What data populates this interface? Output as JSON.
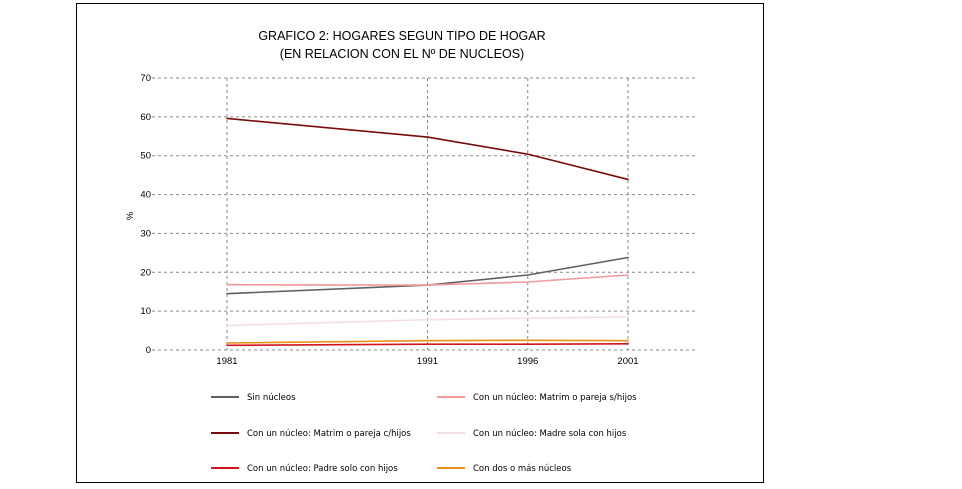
{
  "chart_data": {
    "type": "line",
    "title": "GRAFICO 2: HOGARES SEGUN TIPO DE HOGAR",
    "subtitle": "(EN RELACION CON EL Nº DE NUCLEOS)",
    "ylabel": "%",
    "xlabel": "",
    "x": [
      "1981",
      "1991",
      "1996",
      "2001"
    ],
    "ylim": [
      0,
      70
    ],
    "yticks": [
      "0",
      "10",
      "20",
      "30",
      "40",
      "50",
      "60",
      "70"
    ],
    "grid": true,
    "legend_position": "bottom",
    "series": [
      {
        "name": "Sin núcleos",
        "values": [
          14.5,
          16.7,
          19.3,
          23.8
        ],
        "color": "#606060"
      },
      {
        "name": "Con un núcleo: Matrim o pareja s/hijos",
        "values": [
          16.8,
          16.7,
          17.5,
          19.3
        ],
        "color": "#f19a9a"
      },
      {
        "name": "Con un núcleo: Matrim o pareja c/hijos",
        "values": [
          59.6,
          54.8,
          50.4,
          43.9
        ],
        "color": "#7a0b0b"
      },
      {
        "name": "Con un núcleo: Madre sola con hijos",
        "values": [
          6.3,
          7.8,
          8.2,
          8.5
        ],
        "color": "#f3e1e1"
      },
      {
        "name": "Con un núcleo: Padre solo con hijos",
        "values": [
          1.2,
          1.5,
          1.5,
          1.6
        ],
        "color": "#d2141e"
      },
      {
        "name": "Con dos o más núcleos",
        "values": [
          1.8,
          2.4,
          2.5,
          2.4
        ],
        "color": "#e8901a"
      }
    ]
  }
}
